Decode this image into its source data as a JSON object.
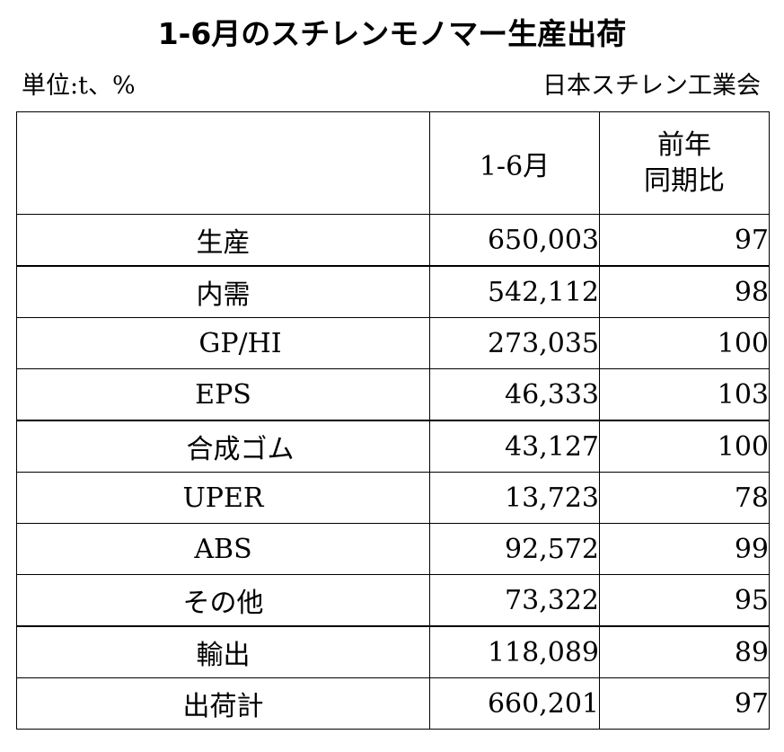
{
  "title": "1-6月のスチレンモノマー生産出荷",
  "unit_note": "単位:t、%",
  "source_note": "日本スチレン工業会",
  "table": {
    "header": {
      "label_col": "",
      "period_col": "1-6月",
      "ratio_col_line1": "前年",
      "ratio_col_line2": "同期比"
    },
    "rows": [
      {
        "label": "生産",
        "value": "650,003",
        "ratio": "97"
      },
      {
        "label": "内需",
        "value": "542,112",
        "ratio": "98"
      },
      {
        "label": "GP/HI",
        "value": "273,035",
        "ratio": "100"
      },
      {
        "label": "EPS",
        "value": "46,333",
        "ratio": "103"
      },
      {
        "label": "合成ゴム",
        "value": "43,127",
        "ratio": "100"
      },
      {
        "label": "UPER",
        "value": "13,723",
        "ratio": "78"
      },
      {
        "label": "ABS",
        "value": "92,572",
        "ratio": "99"
      },
      {
        "label": "その他",
        "value": "73,322",
        "ratio": "95"
      },
      {
        "label": "輸出",
        "value": "118,089",
        "ratio": "89"
      },
      {
        "label": "出荷計",
        "value": "660,201",
        "ratio": "97"
      }
    ]
  }
}
